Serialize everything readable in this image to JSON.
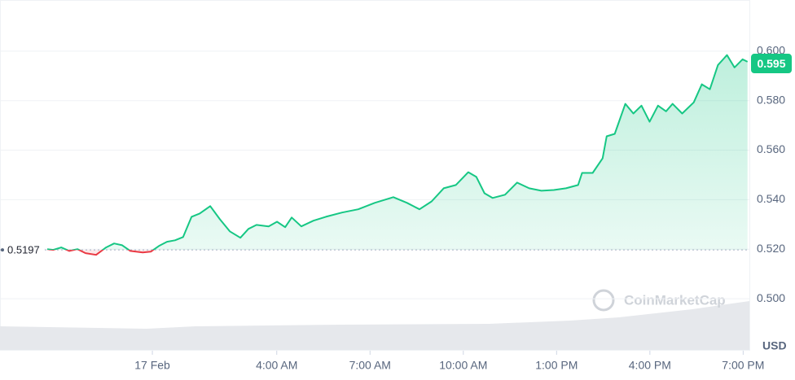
{
  "chart_data": {
    "type": "line",
    "x": [
      -3.38,
      -3.19,
      -2.93,
      -2.67,
      -2.41,
      -2.15,
      -1.81,
      -1.49,
      -1.23,
      -0.97,
      -0.71,
      -0.31,
      -0.05,
      0.21,
      0.47,
      0.73,
      0.99,
      1.26,
      1.52,
      1.86,
      2.17,
      2.49,
      2.83,
      3.09,
      3.35,
      3.74,
      4.01,
      4.27,
      4.48,
      4.79,
      5.18,
      5.58,
      6.1,
      6.62,
      7.15,
      7.75,
      8.19,
      8.59,
      8.98,
      9.37,
      9.76,
      10.16,
      10.42,
      10.68,
      10.94,
      11.34,
      11.73,
      12.12,
      12.51,
      12.91,
      13.3,
      13.69,
      13.82,
      14.16,
      14.48,
      14.61,
      14.87,
      15.21,
      15.47,
      15.73,
      15.99,
      16.26,
      16.52,
      16.73,
      17.04,
      17.41,
      17.67,
      17.93,
      18.19,
      18.48,
      18.72,
      18.98,
      19.14
    ],
    "series": [
      {
        "color": "#16c784",
        "below_color": "#ea3943",
        "values": [
          0.52,
          0.5197,
          0.5207,
          0.5193,
          0.52,
          0.5184,
          0.5177,
          0.5207,
          0.5223,
          0.5216,
          0.5193,
          0.5187,
          0.519,
          0.5213,
          0.523,
          0.5236,
          0.5249,
          0.5331,
          0.5344,
          0.5374,
          0.5321,
          0.5272,
          0.5246,
          0.5282,
          0.5298,
          0.5292,
          0.5311,
          0.5289,
          0.5328,
          0.5292,
          0.5315,
          0.5331,
          0.5348,
          0.5361,
          0.5387,
          0.541,
          0.5387,
          0.5361,
          0.5393,
          0.5446,
          0.5459,
          0.5511,
          0.5492,
          0.5426,
          0.5407,
          0.542,
          0.5469,
          0.5446,
          0.5436,
          0.5439,
          0.5446,
          0.5459,
          0.5508,
          0.5508,
          0.5567,
          0.5656,
          0.5666,
          0.5787,
          0.5748,
          0.578,
          0.5715,
          0.578,
          0.5757,
          0.5787,
          0.5748,
          0.5793,
          0.5866,
          0.5846,
          0.5944,
          0.5984,
          0.5934,
          0.5967,
          0.5957
        ]
      }
    ],
    "baseline": 0.5197,
    "current_price": 0.595,
    "currency": "USD",
    "watermark": "CoinMarketCap",
    "xlim": [
      -4.9,
      19.2
    ],
    "xticks": [
      {
        "value": 0,
        "label": "17 Feb"
      },
      {
        "value": 4,
        "label": "4:00 AM"
      },
      {
        "value": 7,
        "label": "7:00 AM"
      },
      {
        "value": 10,
        "label": "10:00 AM"
      },
      {
        "value": 13,
        "label": "1:00 PM"
      },
      {
        "value": 16,
        "label": "4:00 PM"
      },
      {
        "value": 19,
        "label": "7:00 PM"
      }
    ],
    "ylim": [
      0.49,
      0.62
    ],
    "yticks": [
      {
        "value": 0.5,
        "label": "0.500"
      },
      {
        "value": 0.52,
        "label": "0.520"
      },
      {
        "value": 0.54,
        "label": "0.540"
      },
      {
        "value": 0.56,
        "label": "0.560"
      },
      {
        "value": 0.58,
        "label": "0.580"
      },
      {
        "value": 0.6,
        "label": "0.600"
      }
    ],
    "grid": true
  }
}
